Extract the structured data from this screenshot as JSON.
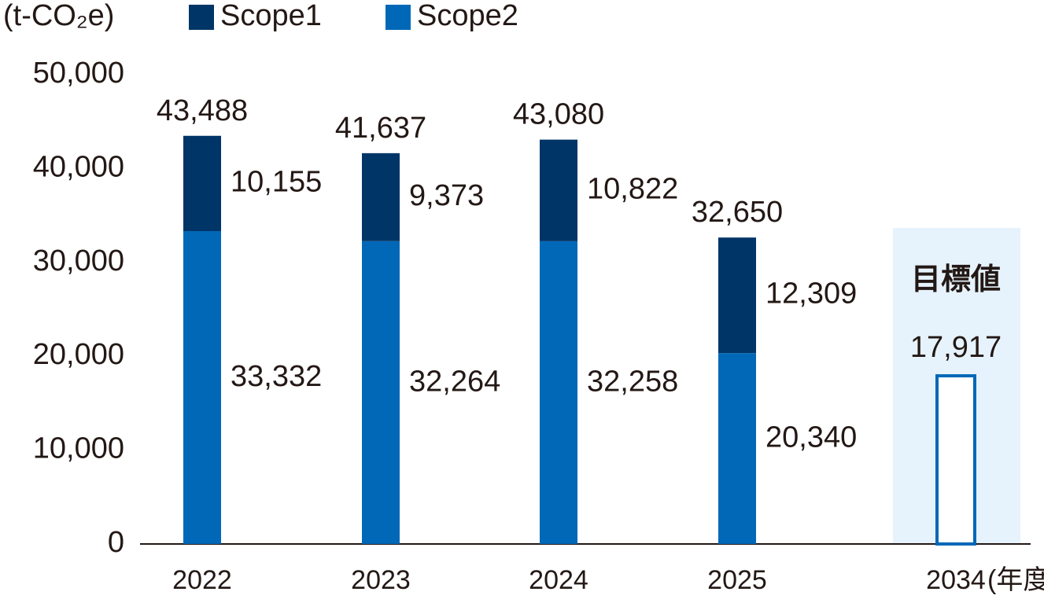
{
  "chart_data": {
    "type": "stacked_bar",
    "y_unit": "(t-CO₂e)",
    "x_unit": "(年度)",
    "categories": [
      "2022",
      "2023",
      "2024",
      "2025",
      "2034"
    ],
    "series": [
      {
        "name": "Scope1",
        "color": "#003567",
        "values": [
          10155,
          9373,
          10822,
          12309,
          null
        ],
        "value_labels": [
          "10,155",
          "9,373",
          "10,822",
          "12,309",
          null
        ]
      },
      {
        "name": "Scope2",
        "color": "#0068b7",
        "values": [
          33332,
          32264,
          32258,
          20340,
          null
        ],
        "value_labels": [
          "33,332",
          "32,264",
          "32,258",
          "20,340",
          null
        ]
      }
    ],
    "totals": [
      43488,
      41637,
      43080,
      32650,
      null
    ],
    "total_labels": [
      "43,488",
      "41,637",
      "43,080",
      "32,650",
      null
    ],
    "target": {
      "label": "目標値",
      "value": 17917,
      "value_label": "17,917",
      "color": "#0068b7",
      "background": "#e6f3fc"
    },
    "ylim": [
      0,
      50000
    ],
    "yticks": [
      0,
      {
        "value": 10000,
        "label": "10,000"
      },
      {
        "value": 20000,
        "label": "20,000"
      },
      {
        "value": 30000,
        "label": "30,000"
      },
      {
        "value": 40000,
        "label": "40,000"
      },
      {
        "value": 50000,
        "label": "50,000"
      }
    ]
  }
}
